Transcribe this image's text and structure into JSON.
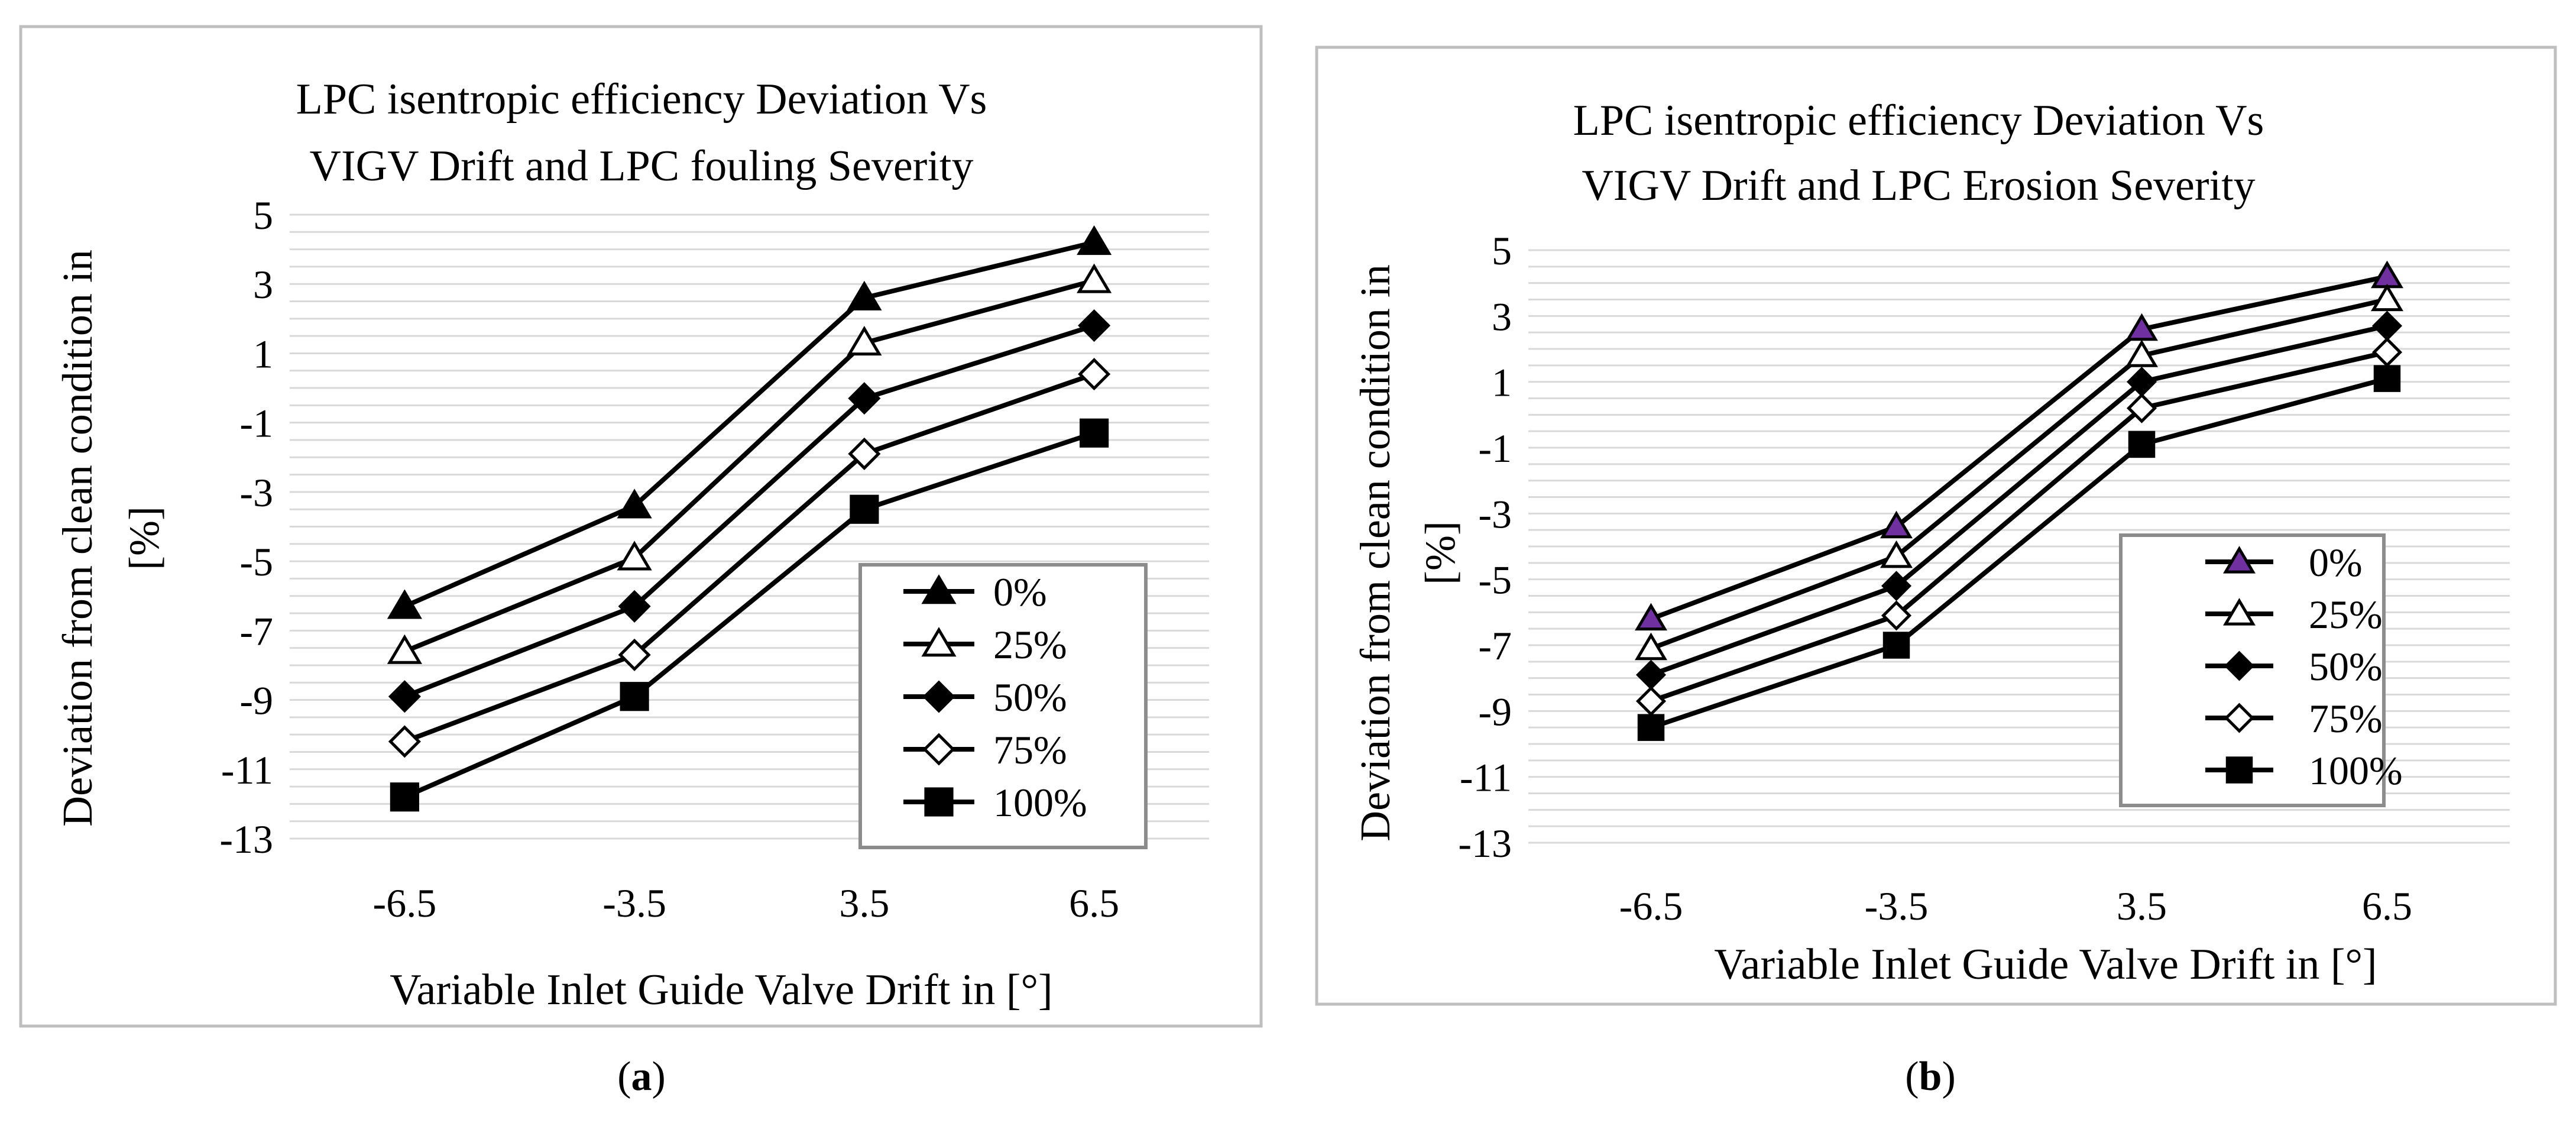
{
  "colors": {
    "line": "#000000",
    "grid": "#d9d9d9",
    "frame": "#bfbfbf",
    "legend_frame": "#8c8c8c",
    "accent_purple": "#7030a0"
  },
  "chart_data": [
    {
      "type": "line",
      "title": [
        "LPC  isentropic efficiency Deviation Vs",
        "VIGV Drift and LPC fouling  Severity"
      ],
      "ylabel": [
        "Deviation from clean condition in",
        "[%]"
      ],
      "xlabel": "Variable Inlet Guide Valve Drift in [°]",
      "caption_prefix": "(",
      "caption_letter": "a",
      "caption_suffix": ")",
      "categories": [
        "-6.5",
        "-3.5",
        "3.5",
        "6.5"
      ],
      "ylim": [
        -13,
        5
      ],
      "yticks": [
        "5",
        "3",
        "1",
        "-1",
        "-3",
        "-5",
        "-7",
        "-9",
        "-11",
        "-13"
      ],
      "grid": true,
      "legend_position": "bottom-right",
      "series": [
        {
          "name": "0%",
          "marker": "triangle-filled",
          "values": [
            -6.3,
            -3.4,
            2.6,
            4.2
          ]
        },
        {
          "name": "25%",
          "marker": "triangle-open",
          "values": [
            -7.6,
            -4.9,
            1.3,
            3.1
          ]
        },
        {
          "name": "50%",
          "marker": "diamond-filled",
          "values": [
            -8.9,
            -6.3,
            -0.3,
            1.8
          ]
        },
        {
          "name": "75%",
          "marker": "diamond-open",
          "values": [
            -10.2,
            -7.7,
            -1.9,
            0.4
          ]
        },
        {
          "name": "100%",
          "marker": "square-filled",
          "values": [
            -11.8,
            -8.9,
            -3.5,
            -1.3
          ]
        }
      ]
    },
    {
      "type": "line",
      "title": [
        "LPC  isentropic efficiency Deviation Vs",
        "VIGV Drift and LPC Erosion  Severity"
      ],
      "ylabel": [
        "Deviation from clean condition in",
        "[%]"
      ],
      "xlabel": "Variable Inlet Guide Valve Drift in [°]",
      "caption_prefix": "(",
      "caption_letter": "b",
      "caption_suffix": ")",
      "categories": [
        "-6.5",
        "-3.5",
        "3.5",
        "6.5"
      ],
      "ylim": [
        -13,
        5
      ],
      "yticks": [
        "5",
        "3",
        "1",
        "-1",
        "-3",
        "-5",
        "-7",
        "-9",
        "-11",
        "-13"
      ],
      "grid": true,
      "legend_position": "right",
      "series": [
        {
          "name": "0%",
          "marker": "triangle-purple",
          "values": [
            -6.2,
            -3.4,
            2.6,
            4.2
          ]
        },
        {
          "name": "25%",
          "marker": "triangle-open",
          "values": [
            -7.1,
            -4.3,
            1.8,
            3.5
          ]
        },
        {
          "name": "50%",
          "marker": "diamond-filled",
          "values": [
            -7.9,
            -5.2,
            1.0,
            2.7
          ]
        },
        {
          "name": "75%",
          "marker": "diamond-open",
          "values": [
            -8.7,
            -6.1,
            0.2,
            1.9
          ]
        },
        {
          "name": "100%",
          "marker": "square-filled",
          "values": [
            -9.5,
            -7.0,
            -0.9,
            1.1
          ]
        }
      ]
    }
  ]
}
